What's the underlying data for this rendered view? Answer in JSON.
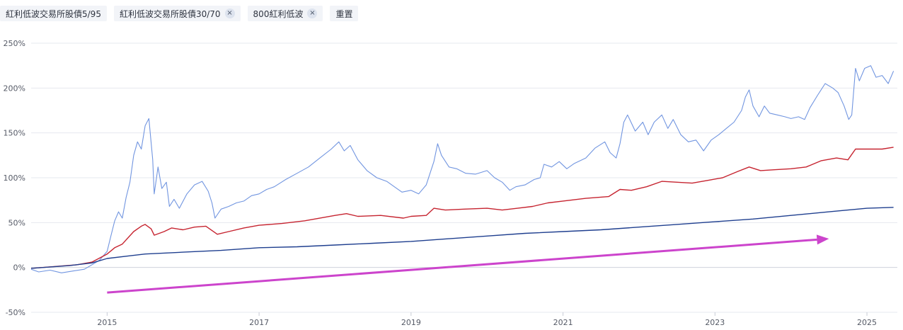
{
  "legend": {
    "items": [
      {
        "label": "紅利低波交易所股債5/95",
        "removable": false
      },
      {
        "label": "紅利低波交易所股債30/70",
        "removable": true
      },
      {
        "label": "800紅利低波",
        "removable": true
      }
    ],
    "close_glyph": "×",
    "reset_label": "重置"
  },
  "chart_data": {
    "type": "line",
    "ylim": [
      -50,
      250
    ],
    "yticks": [
      -50,
      0,
      50,
      100,
      150,
      200,
      250
    ],
    "ytick_labels": [
      "-50%",
      "0%",
      "50%",
      "100%",
      "150%",
      "200%",
      "250%"
    ],
    "xlim": [
      2014.0,
      2025.4
    ],
    "xticks": [
      2015,
      2017,
      2019,
      2021,
      2023,
      2025
    ],
    "xtick_labels": [
      "2015",
      "2017",
      "2019",
      "2021",
      "2023",
      "2025"
    ],
    "grid": true,
    "series": [
      {
        "name": "800紅利低波",
        "color": "#7195e0",
        "values": [
          [
            2014.0,
            -2
          ],
          [
            2014.1,
            -5
          ],
          [
            2014.25,
            -3
          ],
          [
            2014.4,
            -6
          ],
          [
            2014.55,
            -4
          ],
          [
            2014.7,
            -2
          ],
          [
            2014.8,
            3
          ],
          [
            2014.9,
            8
          ],
          [
            2015.0,
            18
          ],
          [
            2015.05,
            35
          ],
          [
            2015.1,
            52
          ],
          [
            2015.15,
            62
          ],
          [
            2015.2,
            55
          ],
          [
            2015.25,
            78
          ],
          [
            2015.3,
            95
          ],
          [
            2015.35,
            125
          ],
          [
            2015.4,
            140
          ],
          [
            2015.45,
            132
          ],
          [
            2015.5,
            158
          ],
          [
            2015.55,
            166
          ],
          [
            2015.6,
            120
          ],
          [
            2015.62,
            82
          ],
          [
            2015.67,
            112
          ],
          [
            2015.72,
            88
          ],
          [
            2015.78,
            95
          ],
          [
            2015.82,
            68
          ],
          [
            2015.88,
            76
          ],
          [
            2015.95,
            66
          ],
          [
            2016.05,
            82
          ],
          [
            2016.15,
            92
          ],
          [
            2016.25,
            96
          ],
          [
            2016.33,
            85
          ],
          [
            2016.38,
            72
          ],
          [
            2016.42,
            55
          ],
          [
            2016.5,
            65
          ],
          [
            2016.6,
            68
          ],
          [
            2016.7,
            72
          ],
          [
            2016.8,
            74
          ],
          [
            2016.9,
            80
          ],
          [
            2017.0,
            82
          ],
          [
            2017.1,
            87
          ],
          [
            2017.2,
            90
          ],
          [
            2017.35,
            98
          ],
          [
            2017.5,
            105
          ],
          [
            2017.65,
            112
          ],
          [
            2017.8,
            122
          ],
          [
            2017.95,
            132
          ],
          [
            2018.05,
            140
          ],
          [
            2018.12,
            130
          ],
          [
            2018.2,
            136
          ],
          [
            2018.3,
            120
          ],
          [
            2018.42,
            108
          ],
          [
            2018.55,
            100
          ],
          [
            2018.68,
            96
          ],
          [
            2018.78,
            90
          ],
          [
            2018.88,
            84
          ],
          [
            2019.0,
            86
          ],
          [
            2019.1,
            82
          ],
          [
            2019.2,
            92
          ],
          [
            2019.3,
            118
          ],
          [
            2019.35,
            138
          ],
          [
            2019.4,
            125
          ],
          [
            2019.5,
            112
          ],
          [
            2019.6,
            110
          ],
          [
            2019.72,
            105
          ],
          [
            2019.85,
            104
          ],
          [
            2020.0,
            108
          ],
          [
            2020.1,
            100
          ],
          [
            2020.2,
            95
          ],
          [
            2020.3,
            86
          ],
          [
            2020.38,
            90
          ],
          [
            2020.5,
            92
          ],
          [
            2020.62,
            98
          ],
          [
            2020.7,
            100
          ],
          [
            2020.75,
            115
          ],
          [
            2020.85,
            112
          ],
          [
            2020.95,
            118
          ],
          [
            2021.05,
            110
          ],
          [
            2021.15,
            116
          ],
          [
            2021.3,
            122
          ],
          [
            2021.42,
            133
          ],
          [
            2021.55,
            140
          ],
          [
            2021.62,
            128
          ],
          [
            2021.7,
            122
          ],
          [
            2021.75,
            138
          ],
          [
            2021.8,
            162
          ],
          [
            2021.85,
            170
          ],
          [
            2021.95,
            152
          ],
          [
            2022.05,
            162
          ],
          [
            2022.12,
            148
          ],
          [
            2022.2,
            162
          ],
          [
            2022.3,
            170
          ],
          [
            2022.38,
            155
          ],
          [
            2022.45,
            165
          ],
          [
            2022.55,
            148
          ],
          [
            2022.65,
            140
          ],
          [
            2022.75,
            142
          ],
          [
            2022.85,
            130
          ],
          [
            2022.95,
            142
          ],
          [
            2023.05,
            148
          ],
          [
            2023.15,
            155
          ],
          [
            2023.25,
            162
          ],
          [
            2023.35,
            175
          ],
          [
            2023.4,
            190
          ],
          [
            2023.45,
            198
          ],
          [
            2023.5,
            180
          ],
          [
            2023.58,
            168
          ],
          [
            2023.65,
            180
          ],
          [
            2023.72,
            172
          ],
          [
            2023.82,
            170
          ],
          [
            2023.92,
            168
          ],
          [
            2024.0,
            166
          ],
          [
            2024.1,
            168
          ],
          [
            2024.18,
            165
          ],
          [
            2024.25,
            178
          ],
          [
            2024.35,
            192
          ],
          [
            2024.45,
            205
          ],
          [
            2024.55,
            200
          ],
          [
            2024.62,
            195
          ],
          [
            2024.7,
            180
          ],
          [
            2024.76,
            165
          ],
          [
            2024.8,
            170
          ],
          [
            2024.85,
            222
          ],
          [
            2024.9,
            208
          ],
          [
            2024.97,
            222
          ],
          [
            2025.05,
            225
          ],
          [
            2025.12,
            212
          ],
          [
            2025.2,
            214
          ],
          [
            2025.28,
            205
          ],
          [
            2025.35,
            219
          ]
        ]
      },
      {
        "name": "紅利低波交易所股債30/70",
        "color": "#c62430",
        "values": [
          [
            2014.0,
            -1
          ],
          [
            2014.3,
            1
          ],
          [
            2014.6,
            3
          ],
          [
            2014.8,
            6
          ],
          [
            2015.0,
            15
          ],
          [
            2015.1,
            22
          ],
          [
            2015.2,
            26
          ],
          [
            2015.35,
            40
          ],
          [
            2015.45,
            46
          ],
          [
            2015.5,
            48
          ],
          [
            2015.58,
            43
          ],
          [
            2015.62,
            36
          ],
          [
            2015.75,
            40
          ],
          [
            2015.85,
            44
          ],
          [
            2016.0,
            42
          ],
          [
            2016.15,
            45
          ],
          [
            2016.3,
            46
          ],
          [
            2016.45,
            37
          ],
          [
            2016.6,
            40
          ],
          [
            2016.8,
            44
          ],
          [
            2017.0,
            47
          ],
          [
            2017.3,
            49
          ],
          [
            2017.6,
            52
          ],
          [
            2018.0,
            58
          ],
          [
            2018.15,
            60
          ],
          [
            2018.3,
            57
          ],
          [
            2018.6,
            58
          ],
          [
            2018.9,
            55
          ],
          [
            2019.0,
            57
          ],
          [
            2019.2,
            58
          ],
          [
            2019.3,
            66
          ],
          [
            2019.45,
            64
          ],
          [
            2019.7,
            65
          ],
          [
            2020.0,
            66
          ],
          [
            2020.2,
            64
          ],
          [
            2020.4,
            66
          ],
          [
            2020.6,
            68
          ],
          [
            2020.8,
            72
          ],
          [
            2021.0,
            74
          ],
          [
            2021.3,
            77
          ],
          [
            2021.6,
            79
          ],
          [
            2021.75,
            87
          ],
          [
            2021.9,
            86
          ],
          [
            2022.1,
            90
          ],
          [
            2022.3,
            96
          ],
          [
            2022.5,
            95
          ],
          [
            2022.7,
            94
          ],
          [
            2022.9,
            97
          ],
          [
            2023.1,
            100
          ],
          [
            2023.3,
            107
          ],
          [
            2023.45,
            112
          ],
          [
            2023.6,
            108
          ],
          [
            2023.8,
            109
          ],
          [
            2024.0,
            110
          ],
          [
            2024.2,
            112
          ],
          [
            2024.4,
            119
          ],
          [
            2024.6,
            122
          ],
          [
            2024.75,
            120
          ],
          [
            2024.85,
            132
          ],
          [
            2025.0,
            132
          ],
          [
            2025.2,
            132
          ],
          [
            2025.35,
            134
          ]
        ]
      },
      {
        "name": "紅利低波交易所股債5/95",
        "color": "#1f3f8f",
        "values": [
          [
            2014.0,
            -1
          ],
          [
            2014.5,
            2
          ],
          [
            2014.8,
            5
          ],
          [
            2015.0,
            10
          ],
          [
            2015.3,
            13
          ],
          [
            2015.5,
            15
          ],
          [
            2016.0,
            17
          ],
          [
            2016.5,
            19
          ],
          [
            2017.0,
            22
          ],
          [
            2017.5,
            23
          ],
          [
            2018.0,
            25
          ],
          [
            2018.5,
            27
          ],
          [
            2019.0,
            29
          ],
          [
            2019.5,
            32
          ],
          [
            2020.0,
            35
          ],
          [
            2020.5,
            38
          ],
          [
            2021.0,
            40
          ],
          [
            2021.5,
            42
          ],
          [
            2022.0,
            45
          ],
          [
            2022.5,
            48
          ],
          [
            2023.0,
            51
          ],
          [
            2023.5,
            54
          ],
          [
            2024.0,
            58
          ],
          [
            2024.5,
            62
          ],
          [
            2025.0,
            66
          ],
          [
            2025.35,
            67
          ]
        ]
      }
    ],
    "annotation": {
      "type": "arrow",
      "color": "#cc44cc",
      "from": [
        2015.0,
        -28
      ],
      "to": [
        2024.5,
        32
      ]
    }
  }
}
